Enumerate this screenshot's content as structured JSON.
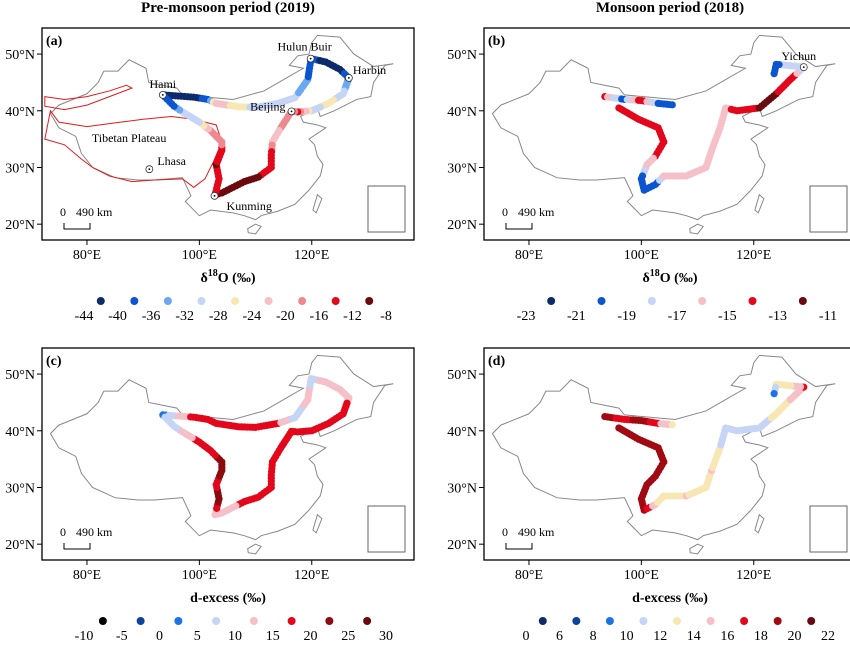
{
  "column_titles": [
    "Pre-monsoon period (2019)",
    "Monsoon period (2018)"
  ],
  "scale_bar": {
    "zero": "0",
    "dist": "490 km"
  },
  "lat_ticks": [
    "50°N",
    "40°N",
    "30°N",
    "20°N"
  ],
  "lon_ticks": [
    "80°E",
    "100°E",
    "120°E"
  ],
  "chart_data": [
    {
      "type": "scatter",
      "panel": "(a)",
      "variable": "δ18O",
      "legend_title": {
        "pre": "δ",
        "sup": "18",
        "post": "O (‰)"
      },
      "legend_ticks": [
        "-44",
        "-40",
        "-36",
        "-32",
        "-28",
        "-24",
        "-20",
        "-16",
        "-12",
        "-8"
      ],
      "colors": [
        "#0d2a6b",
        "#0b55d0",
        "#6aa8f2",
        "#c6d5f5",
        "#f8e7b5",
        "#f5c0c8",
        "#ee8a8f",
        "#e3071b",
        "#6b0a0e"
      ],
      "cities": [
        {
          "name": "Hami",
          "lon": 93.5,
          "lat": 42.8
        },
        {
          "name": "Hulun Buir",
          "lon": 119.8,
          "lat": 49.2
        },
        {
          "name": "Harbin",
          "lon": 126.6,
          "lat": 45.8
        },
        {
          "name": "Beijing",
          "lon": 116.4,
          "lat": 39.9
        },
        {
          "name": "Kunming",
          "lon": 102.7,
          "lat": 25
        },
        {
          "name": "Lhasa",
          "lon": 91.1,
          "lat": 29.7
        }
      ],
      "region_label": "Tibetan Plateau",
      "route": [
        [
          93.5,
          42.8,
          -41
        ],
        [
          99,
          42.4,
          -42
        ],
        [
          101.5,
          42,
          -38
        ],
        [
          103,
          41.3,
          -22
        ],
        [
          107,
          40.7,
          -26
        ],
        [
          110,
          40.6,
          -30
        ],
        [
          114,
          41.3,
          -29
        ],
        [
          117,
          42.3,
          -31
        ],
        [
          119.3,
          45.5,
          -36
        ],
        [
          119.6,
          47.5,
          -37
        ],
        [
          119.9,
          49.2,
          -38
        ],
        [
          122.5,
          48.6,
          -42
        ],
        [
          125,
          47.3,
          -41
        ],
        [
          126.6,
          45.8,
          -38
        ],
        [
          125.6,
          43,
          -30
        ],
        [
          123,
          41.3,
          -27
        ],
        [
          120,
          40,
          -30
        ],
        [
          117.5,
          39.8,
          -14
        ],
        [
          116.4,
          39.9,
          -20
        ],
        [
          114.5,
          37,
          -20
        ],
        [
          113,
          34.5,
          -22
        ],
        [
          112.8,
          32.2,
          -13
        ],
        [
          112.8,
          30,
          -13
        ],
        [
          110.5,
          28.3,
          -12
        ],
        [
          108,
          27.5,
          -12
        ],
        [
          106,
          26.5,
          -9
        ],
        [
          104,
          25.5,
          -12
        ],
        [
          102.8,
          25.2,
          -12
        ],
        [
          103.5,
          28,
          -13
        ],
        [
          103,
          30.5,
          -12
        ],
        [
          104,
          33,
          -13
        ],
        [
          104,
          34.5,
          -18
        ],
        [
          102,
          36.5,
          -20
        ],
        [
          100,
          38,
          -29
        ],
        [
          97,
          39.8,
          -31
        ],
        [
          95.5,
          40.8,
          -37
        ],
        [
          93.5,
          42.8,
          -40
        ]
      ]
    },
    {
      "type": "scatter",
      "panel": "(b)",
      "variable": "δ18O",
      "legend_title": {
        "pre": "δ",
        "sup": "18",
        "post": "O (‰)"
      },
      "legend_ticks": [
        "-23",
        "-21",
        "-19",
        "-17",
        "-15",
        "-13",
        "-11"
      ],
      "colors": [
        "#0d2a6b",
        "#0b55d0",
        "#c6d5f5",
        "#f5c0c8",
        "#e3071b",
        "#6b0a0e"
      ],
      "cities": [
        {
          "name": "Yichun",
          "lon": 128.9,
          "lat": 47.7
        }
      ],
      "route": [
        [
          93.5,
          42.5,
          -15
        ],
        [
          97,
          42,
          -20
        ],
        [
          100,
          41.8,
          -14
        ],
        [
          103,
          41.3,
          -20
        ],
        [
          106,
          41,
          -21
        ],
        [
          96,
          40.5,
          -14
        ],
        [
          99.5,
          38.5,
          -13.5
        ],
        [
          103,
          37,
          -14
        ],
        [
          104,
          34.5,
          -13.5
        ],
        [
          102.5,
          32,
          -15
        ],
        [
          101,
          30.5,
          -16
        ],
        [
          100,
          28,
          -21
        ],
        [
          100.5,
          26,
          -20
        ],
        [
          102.5,
          27,
          -20
        ],
        [
          104,
          28.5,
          -17
        ],
        [
          108,
          28.5,
          -16
        ],
        [
          111.5,
          30,
          -16
        ],
        [
          112.5,
          33,
          -16.5
        ],
        [
          114,
          37,
          -16
        ],
        [
          115,
          40.5,
          -16
        ],
        [
          117,
          40,
          -13.5
        ],
        [
          121,
          40.5,
          -13
        ],
        [
          124,
          43,
          -13
        ],
        [
          126.5,
          45.5,
          -13.5
        ],
        [
          128.9,
          47.7,
          -18
        ],
        [
          126,
          48,
          -18
        ],
        [
          124,
          48.2,
          -20
        ],
        [
          123.5,
          46,
          -21
        ]
      ]
    },
    {
      "type": "scatter",
      "panel": "(c)",
      "variable": "d-excess",
      "legend_title": {
        "pre": "d-excess (‰)",
        "sup": "",
        "post": ""
      },
      "legend_ticks": [
        "-10",
        "-5",
        "0",
        "5",
        "10",
        "15",
        "20",
        "25",
        "30"
      ],
      "colors": [
        "#000000",
        "#0b43a0",
        "#1a74e8",
        "#c6d5f5",
        "#f5c0c8",
        "#e3071b",
        "#8b0a0e",
        "#6b0a0e"
      ],
      "route": [
        [
          93.5,
          42.8,
          3
        ],
        [
          99,
          42.4,
          17
        ],
        [
          101.5,
          42,
          17
        ],
        [
          103,
          41.3,
          17
        ],
        [
          107,
          40.7,
          18
        ],
        [
          110,
          40.6,
          17
        ],
        [
          114,
          41.3,
          16
        ],
        [
          117,
          42.3,
          8
        ],
        [
          119.3,
          45.5,
          11
        ],
        [
          119.6,
          47.5,
          10
        ],
        [
          119.9,
          49.2,
          8
        ],
        [
          122.5,
          48.6,
          12
        ],
        [
          125,
          47.3,
          13
        ],
        [
          126.6,
          45.8,
          14
        ],
        [
          125.6,
          43,
          17
        ],
        [
          123,
          41.3,
          17
        ],
        [
          120,
          40,
          16
        ],
        [
          117.5,
          39.8,
          17
        ],
        [
          116.4,
          39.9,
          17
        ],
        [
          114.5,
          37,
          17
        ],
        [
          113,
          34.5,
          18
        ],
        [
          112.8,
          32.2,
          17
        ],
        [
          112.8,
          30,
          18
        ],
        [
          110.5,
          28.3,
          18
        ],
        [
          108,
          27.5,
          17
        ],
        [
          106,
          26.5,
          13
        ],
        [
          104,
          25.5,
          12
        ],
        [
          102.8,
          25.2,
          12
        ],
        [
          103.5,
          28,
          23
        ],
        [
          103,
          30.5,
          19
        ],
        [
          104,
          33,
          21
        ],
        [
          104,
          34.5,
          22
        ],
        [
          102,
          36.5,
          18
        ],
        [
          100,
          38,
          17
        ],
        [
          97,
          39.8,
          12
        ],
        [
          95.5,
          40.8,
          6
        ],
        [
          93.5,
          42.8,
          5
        ]
      ]
    },
    {
      "type": "scatter",
      "panel": "(d)",
      "variable": "d-excess",
      "legend_title": {
        "pre": "d-excess (‰)",
        "sup": "",
        "post": ""
      },
      "legend_ticks": [
        "0",
        "6",
        "8",
        "10",
        "12",
        "14",
        "16",
        "18",
        "20",
        "22"
      ],
      "colors": [
        "#0d2a6b",
        "#0b43a0",
        "#1a74e8",
        "#c6d5f5",
        "#f8e7b5",
        "#f5c0c8",
        "#e3071b",
        "#a00a10",
        "#6b0a0e"
      ],
      "route": [
        [
          93.5,
          42.5,
          19
        ],
        [
          97,
          42,
          17
        ],
        [
          100,
          41.8,
          19
        ],
        [
          103,
          41.3,
          16
        ],
        [
          106,
          41,
          13
        ],
        [
          96,
          40.5,
          19
        ],
        [
          99.5,
          38.5,
          19
        ],
        [
          103,
          37,
          18
        ],
        [
          104,
          34.5,
          19
        ],
        [
          102.5,
          32,
          18
        ],
        [
          101,
          30.5,
          19
        ],
        [
          100,
          28,
          18
        ],
        [
          100.5,
          26,
          19
        ],
        [
          102.5,
          27,
          14
        ],
        [
          104,
          28.5,
          13
        ],
        [
          108,
          28.5,
          14
        ],
        [
          111.5,
          30,
          13
        ],
        [
          112.5,
          33,
          14
        ],
        [
          114,
          37,
          12
        ],
        [
          115,
          40.5,
          11
        ],
        [
          117,
          40,
          11
        ],
        [
          121,
          40.5,
          10
        ],
        [
          124,
          43,
          13
        ],
        [
          126.5,
          45.5,
          14
        ],
        [
          128.9,
          47.7,
          16
        ],
        [
          126,
          48,
          13
        ],
        [
          124,
          48.2,
          12
        ],
        [
          123.5,
          46,
          9
        ]
      ]
    }
  ]
}
